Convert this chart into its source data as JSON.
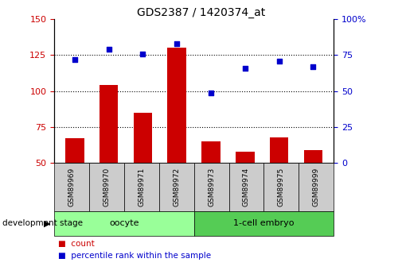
{
  "title": "GDS2387 / 1420374_at",
  "samples": [
    "GSM89969",
    "GSM89970",
    "GSM89971",
    "GSM89972",
    "GSM89973",
    "GSM89974",
    "GSM89975",
    "GSM89999"
  ],
  "counts": [
    67,
    104,
    85,
    130,
    65,
    58,
    68,
    59
  ],
  "percentiles": [
    72,
    79,
    76,
    83,
    49,
    66,
    71,
    67
  ],
  "left_ylim": [
    50,
    150
  ],
  "right_ylim": [
    0,
    100
  ],
  "left_yticks": [
    50,
    75,
    100,
    125,
    150
  ],
  "right_yticks": [
    0,
    25,
    50,
    75,
    100
  ],
  "bar_color": "#cc0000",
  "dot_color": "#0000cc",
  "tick_color_left": "#cc0000",
  "tick_color_right": "#0000cc",
  "groups": [
    {
      "label": "oocyte",
      "start": 0,
      "end": 3,
      "color": "#99ff99"
    },
    {
      "label": "1-cell embryo",
      "start": 4,
      "end": 7,
      "color": "#55cc55"
    }
  ],
  "sample_box_color": "#cccccc",
  "xlabel_text": "development stage",
  "legend_count_label": "count",
  "legend_percentile_label": "percentile rank within the sample",
  "bar_width": 0.55,
  "figsize": [
    5.05,
    3.45
  ],
  "dpi": 100
}
